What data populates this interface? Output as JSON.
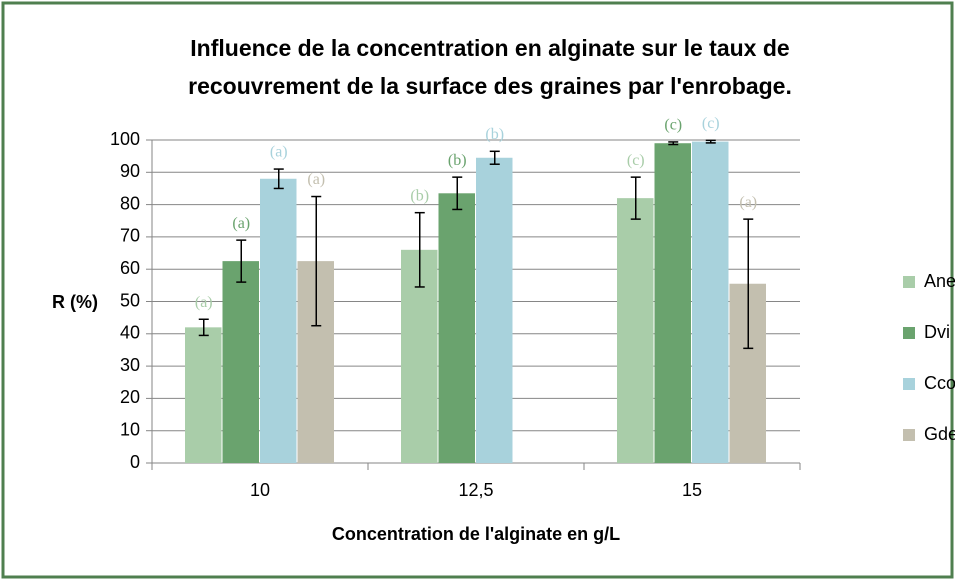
{
  "chart_data": {
    "type": "bar",
    "title": "Influence de la concentration en alginate sur le taux de recouvrement de la surface des graines par l'enrobage.",
    "xlabel": "Concentration de l'alginate en g/L",
    "ylabel": "R (%)",
    "categories": [
      "10",
      "12,5",
      "15"
    ],
    "series": [
      {
        "name": "Ane",
        "color": "#a9cda9",
        "values": [
          42,
          66,
          82
        ],
        "errors": [
          2.5,
          11.5,
          6.5
        ],
        "letters": [
          "(a)",
          "(b)",
          "(c)"
        ]
      },
      {
        "name": "Dvi",
        "color": "#6aa36e",
        "values": [
          62.5,
          83.5,
          99
        ],
        "errors": [
          6.5,
          5,
          0.4
        ],
        "letters": [
          "(a)",
          "(b)",
          "(c)"
        ]
      },
      {
        "name": "Cco",
        "color": "#a8d2dc",
        "values": [
          88,
          94.5,
          99.5
        ],
        "errors": [
          3,
          2,
          0.4
        ],
        "letters": [
          "(a)",
          "(b)",
          "(c)"
        ]
      },
      {
        "name": "Gde",
        "color": "#c3bfaf",
        "values": [
          62.5,
          null,
          55.5
        ],
        "errors": [
          20,
          null,
          20
        ],
        "letters": [
          "(a)",
          null,
          "(a)"
        ]
      }
    ],
    "ylim": [
      0,
      100
    ],
    "yticks": [
      0,
      10,
      20,
      30,
      40,
      50,
      60,
      70,
      80,
      90,
      100
    ],
    "grid": true,
    "legend": "right"
  }
}
